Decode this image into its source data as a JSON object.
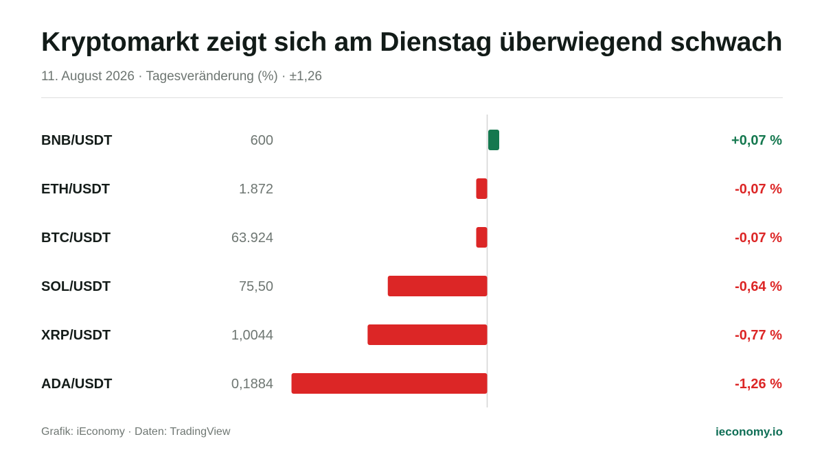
{
  "header": {
    "title": "Kryptomarkt zeigt sich am Dienstag überwiegend schwach",
    "subtitle": "11. August 2026 · Tagesveränderung (%) · ±1,26"
  },
  "colors": {
    "positive": "#15784f",
    "negative": "#dc2626",
    "axis": "#d4d4d4"
  },
  "chart_data": {
    "type": "bar",
    "orientation": "horizontal",
    "categories": [
      "BNB/USDT",
      "ETH/USDT",
      "BTC/USDT",
      "SOL/USDT",
      "XRP/USDT",
      "ADA/USDT"
    ],
    "prices": [
      "600",
      "1.872",
      "63.924",
      "75,50",
      "1,0044",
      "0,1884"
    ],
    "values": [
      0.07,
      -0.07,
      -0.07,
      -0.64,
      -0.77,
      -1.26
    ],
    "value_labels": [
      "+0,07 %",
      "-0,07 %",
      "-0,07 %",
      "-0,64 %",
      "-0,77 %",
      "-1,26 %"
    ],
    "xlim": [
      -1.26,
      1.26
    ],
    "grid": false
  },
  "footer": {
    "source": "Grafik: iEconomy · Daten: TradingView",
    "brand": "ieconomy.io"
  }
}
